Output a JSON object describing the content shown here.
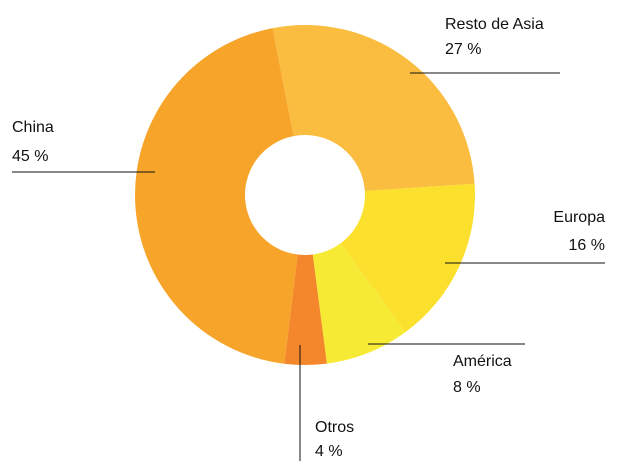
{
  "chart_data": {
    "type": "donut",
    "categories": [
      "Resto de Asia",
      "Europa",
      "América",
      "Otros",
      "China"
    ],
    "values": [
      27,
      16,
      8,
      4,
      45
    ],
    "value_labels": [
      "27 %",
      "16 %",
      "8 %",
      "4 %",
      "45 %"
    ],
    "colors": [
      "#fbbd40",
      "#fce02e",
      "#f6ea35",
      "#f4862b",
      "#f7a42b"
    ]
  }
}
